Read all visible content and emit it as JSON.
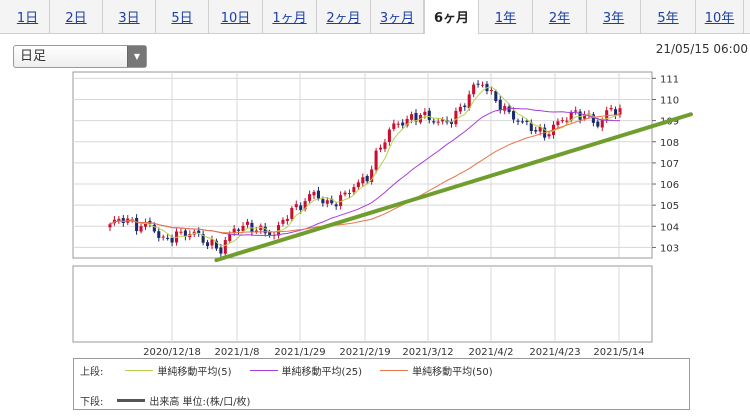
{
  "tabs": [
    {
      "label": "1日",
      "active": false
    },
    {
      "label": "2日",
      "active": false
    },
    {
      "label": "3日",
      "active": false
    },
    {
      "label": "5日",
      "active": false
    },
    {
      "label": "10日",
      "active": false
    },
    {
      "label": "1ヶ月",
      "active": false
    },
    {
      "label": "2ヶ月",
      "active": false
    },
    {
      "label": "3ヶ月",
      "active": false
    },
    {
      "label": "6ヶ月",
      "active": true
    },
    {
      "label": "1年",
      "active": false
    },
    {
      "label": "2年",
      "active": false
    },
    {
      "label": "3年",
      "active": false
    },
    {
      "label": "5年",
      "active": false
    },
    {
      "label": "10年",
      "active": false
    }
  ],
  "select": {
    "value": "日足"
  },
  "timestamp": "21/05/15 06:00",
  "legend": {
    "upper_label": "上段:",
    "lower_label": "下段:",
    "items": [
      {
        "label": "単純移動平均(5)",
        "color": "#b5d44c"
      },
      {
        "label": "単純移動平均(25)",
        "color": "#a63fd6"
      },
      {
        "label": "単純移動平均(50)",
        "color": "#e8744a"
      }
    ],
    "volume_label": "出来高 単位:(株/口/枚)",
    "volume_color": "#555555"
  },
  "chart_data": {
    "type": "candlestick",
    "x_ticks": [
      "2020/12/18",
      "2021/1/8",
      "2021/1/29",
      "2021/2/19",
      "2021/3/12",
      "2021/4/2",
      "2021/4/23",
      "2021/5/14"
    ],
    "y_ticks": [
      103,
      104,
      105,
      106,
      107,
      108,
      109,
      110,
      111
    ],
    "ylim": [
      102.5,
      111.3
    ],
    "colors": {
      "up": "#c8102e",
      "down": "#1a2a6e",
      "trendline": "#6f9d2e"
    },
    "anchors": [
      {
        "i": 0,
        "v": 104.1
      },
      {
        "i": 3,
        "v": 104.4
      },
      {
        "i": 6,
        "v": 104.0
      },
      {
        "i": 9,
        "v": 104.1
      },
      {
        "i": 12,
        "v": 103.3
      },
      {
        "i": 15,
        "v": 103.6
      },
      {
        "i": 19,
        "v": 103.7
      },
      {
        "i": 22,
        "v": 103.2
      },
      {
        "i": 25,
        "v": 102.9
      },
      {
        "i": 28,
        "v": 103.9
      },
      {
        "i": 31,
        "v": 104.0
      },
      {
        "i": 34,
        "v": 103.8
      },
      {
        "i": 37,
        "v": 103.6
      },
      {
        "i": 40,
        "v": 104.6
      },
      {
        "i": 43,
        "v": 105.0
      },
      {
        "i": 46,
        "v": 105.6
      },
      {
        "i": 49,
        "v": 105.0
      },
      {
        "i": 52,
        "v": 105.3
      },
      {
        "i": 55,
        "v": 105.9
      },
      {
        "i": 58,
        "v": 106.3
      },
      {
        "i": 61,
        "v": 107.8
      },
      {
        "i": 64,
        "v": 108.8
      },
      {
        "i": 67,
        "v": 109.0
      },
      {
        "i": 70,
        "v": 109.3
      },
      {
        "i": 73,
        "v": 109.0
      },
      {
        "i": 76,
        "v": 108.9
      },
      {
        "i": 79,
        "v": 109.5
      },
      {
        "i": 82,
        "v": 110.6
      },
      {
        "i": 84,
        "v": 110.8
      },
      {
        "i": 86,
        "v": 110.2
      },
      {
        "i": 89,
        "v": 109.5
      },
      {
        "i": 92,
        "v": 109.0
      },
      {
        "i": 95,
        "v": 108.7
      },
      {
        "i": 98,
        "v": 108.3
      },
      {
        "i": 101,
        "v": 108.9
      },
      {
        "i": 104,
        "v": 109.3
      },
      {
        "i": 107,
        "v": 109.3
      },
      {
        "i": 110,
        "v": 108.8
      },
      {
        "i": 113,
        "v": 109.6
      },
      {
        "i": 115,
        "v": 109.4
      }
    ],
    "trendline": {
      "start": {
        "i": 24,
        "v": 102.4
      },
      "end": {
        "i": 131,
        "v": 109.3
      }
    }
  }
}
